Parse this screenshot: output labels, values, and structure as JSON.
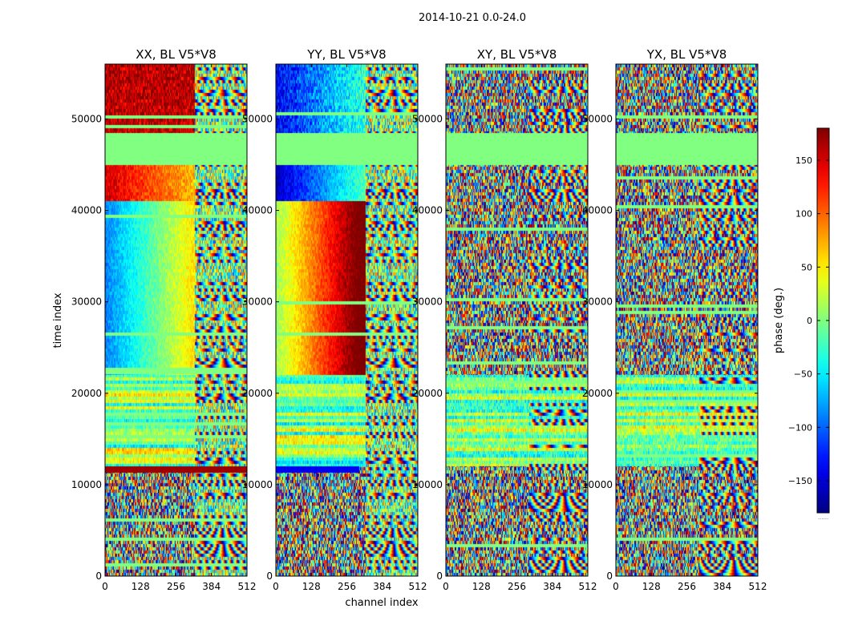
{
  "chart_data": {
    "type": "heatmap",
    "suptitle": "2014-10-21 0.0-24.0",
    "xlabel": "channel index",
    "ylabel": "time index",
    "xlim": [
      0,
      512
    ],
    "ylim": [
      0,
      56000
    ],
    "xticks": [
      0,
      128,
      256,
      384,
      512
    ],
    "yticks": [
      0,
      10000,
      20000,
      30000,
      40000,
      50000
    ],
    "panels": [
      {
        "title": "XX, BL V5*V8",
        "pol": "XX"
      },
      {
        "title": "YY, BL V5*V8",
        "pol": "YY"
      },
      {
        "title": "XY, BL V5*V8",
        "pol": "XY"
      },
      {
        "title": "YX, BL V5*V8",
        "pol": "YX"
      }
    ],
    "gap_time_range": [
      45000,
      48500
    ],
    "band_edge_channel": 325,
    "colorbar": {
      "label": "phase (deg.)",
      "range": [
        -180,
        180
      ],
      "ticks": [
        -150,
        -100,
        -50,
        0,
        50,
        100,
        150
      ],
      "tick_labels": [
        "−150",
        "−100",
        "−50",
        "0",
        "50",
        "100",
        "150"
      ],
      "colormap": "jet",
      "footer": "......"
    }
  }
}
